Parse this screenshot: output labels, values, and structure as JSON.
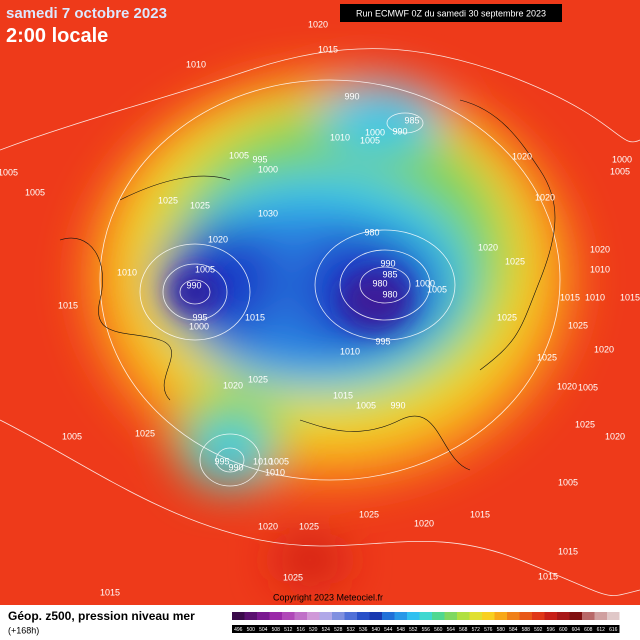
{
  "header": {
    "title": "samedi 7 octobre 2023",
    "local_time": "2:00 locale",
    "run": "Run ECMWF 0Z du samedi 30 septembre 2023"
  },
  "footer": {
    "label": "Géop. z500, pression niveau mer",
    "lead": "(+168h)",
    "copyright": "Copyright 2023 Meteociel.fr"
  },
  "colorbar": {
    "labels": [
      496,
      500,
      504,
      508,
      512,
      516,
      520,
      524,
      528,
      532,
      536,
      540,
      544,
      548,
      552,
      556,
      560,
      564,
      568,
      572,
      576,
      580,
      584,
      588,
      592,
      596,
      600,
      604,
      608,
      612,
      616
    ]
  },
  "isobars": [
    1020,
    1015,
    1010,
    990,
    985,
    990,
    1000,
    1005,
    1010,
    1005,
    995,
    1000,
    1020,
    1000,
    1005,
    1005,
    1005,
    1025,
    1025,
    1020,
    1030,
    980,
    1020,
    1020,
    1025,
    990,
    985,
    1005,
    980,
    1000,
    980,
    1005,
    1010,
    1020,
    1010,
    990,
    1015,
    1015,
    1010,
    1015,
    995,
    1000,
    1015,
    995,
    1010,
    1025,
    1025,
    1025,
    1020,
    1020,
    1005,
    1020,
    1025,
    1015,
    1005,
    990,
    1025,
    1005,
    1025,
    1020,
    995,
    990,
    1010,
    1005,
    1010,
    1005,
    1025,
    1020,
    1015,
    1020,
    1025,
    1015,
    1025,
    1015,
    1015
  ]
}
